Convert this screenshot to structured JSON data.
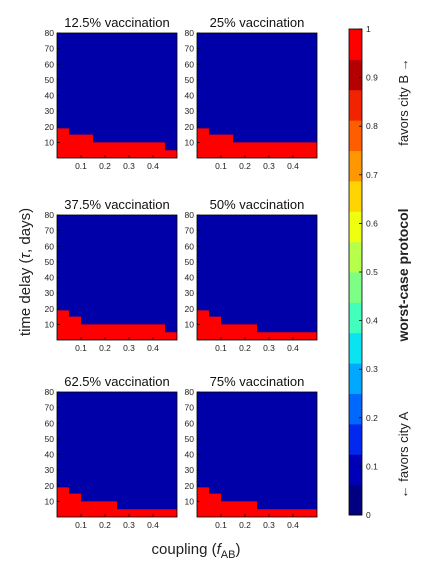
{
  "chart_data": {
    "type": "heatmap",
    "xlabel": "coupling (",
    "xlabel_var": "f",
    "xlabel_sub": "AB",
    "xlabel_close": ")",
    "ylabel": "time delay (",
    "ylabel_var": "τ",
    "ylabel_close": ", days)",
    "x_ticks": [
      "0.1",
      "0.2",
      "0.3",
      "0.4"
    ],
    "x_tick_values": [
      0.1,
      0.2,
      0.3,
      0.4
    ],
    "xlim": [
      0,
      0.5
    ],
    "y_ticks": [
      "10",
      "20",
      "30",
      "40",
      "50",
      "60",
      "70",
      "80"
    ],
    "y_tick_values": [
      10,
      20,
      30,
      40,
      50,
      60,
      70,
      80
    ],
    "ylim": [
      0,
      80
    ],
    "colorbar": {
      "label": "worst-case protocol",
      "top_label": "favors city B →",
      "bottom_label": "← favors city A",
      "ticks": [
        "0",
        "0.1",
        "0.2",
        "0.3",
        "0.4",
        "0.5",
        "0.6",
        "0.7",
        "0.8",
        "0.9",
        "1"
      ],
      "range": [
        0,
        1
      ],
      "colors": [
        "#000080",
        "#0000b8",
        "#0028ef",
        "#0068ff",
        "#00a8ff",
        "#0ae4f2",
        "#42ffbc",
        "#7cff84",
        "#b6ff4a",
        "#eeff10",
        "#ffd400",
        "#ff9800",
        "#ff5e00",
        "#f22300",
        "#b40000",
        "#ff0000"
      ]
    },
    "background_value": 0,
    "background_color": "#0000a8",
    "region_value": 1,
    "region_color": "#ff0000",
    "panels": [
      {
        "title": "12.5% vaccination",
        "boundary": [
          [
            0,
            19
          ],
          [
            0.05,
            15
          ],
          [
            0.1,
            15
          ],
          [
            0.15,
            10
          ],
          [
            0.2,
            10
          ],
          [
            0.25,
            10
          ],
          [
            0.3,
            10
          ],
          [
            0.35,
            10
          ],
          [
            0.4,
            10
          ],
          [
            0.45,
            5
          ],
          [
            0.5,
            5
          ]
        ]
      },
      {
        "title": "25% vaccination",
        "boundary": [
          [
            0,
            19
          ],
          [
            0.05,
            15
          ],
          [
            0.1,
            15
          ],
          [
            0.15,
            10
          ],
          [
            0.2,
            10
          ],
          [
            0.25,
            10
          ],
          [
            0.3,
            10
          ],
          [
            0.35,
            10
          ],
          [
            0.4,
            10
          ],
          [
            0.45,
            10
          ],
          [
            0.5,
            5
          ]
        ]
      },
      {
        "title": "37.5% vaccination",
        "boundary": [
          [
            0,
            19
          ],
          [
            0.05,
            15
          ],
          [
            0.1,
            10
          ],
          [
            0.15,
            10
          ],
          [
            0.2,
            10
          ],
          [
            0.25,
            10
          ],
          [
            0.3,
            10
          ],
          [
            0.35,
            10
          ],
          [
            0.4,
            10
          ],
          [
            0.45,
            5
          ],
          [
            0.5,
            5
          ]
        ]
      },
      {
        "title": "50% vaccination",
        "boundary": [
          [
            0,
            19
          ],
          [
            0.05,
            15
          ],
          [
            0.1,
            10
          ],
          [
            0.15,
            10
          ],
          [
            0.2,
            10
          ],
          [
            0.25,
            5
          ],
          [
            0.3,
            5
          ],
          [
            0.35,
            5
          ],
          [
            0.4,
            5
          ],
          [
            0.45,
            5
          ],
          [
            0.5,
            5
          ]
        ]
      },
      {
        "title": "62.5% vaccination",
        "boundary": [
          [
            0,
            19
          ],
          [
            0.05,
            15
          ],
          [
            0.1,
            10
          ],
          [
            0.15,
            10
          ],
          [
            0.2,
            10
          ],
          [
            0.25,
            5
          ],
          [
            0.3,
            5
          ],
          [
            0.35,
            5
          ],
          [
            0.4,
            5
          ],
          [
            0.45,
            5
          ],
          [
            0.5,
            5
          ]
        ]
      },
      {
        "title": "75% vaccination",
        "boundary": [
          [
            0,
            19
          ],
          [
            0.05,
            15
          ],
          [
            0.1,
            10
          ],
          [
            0.15,
            10
          ],
          [
            0.2,
            10
          ],
          [
            0.25,
            5
          ],
          [
            0.3,
            5
          ],
          [
            0.35,
            5
          ],
          [
            0.4,
            5
          ],
          [
            0.45,
            5
          ],
          [
            0.5,
            5
          ]
        ]
      }
    ]
  }
}
